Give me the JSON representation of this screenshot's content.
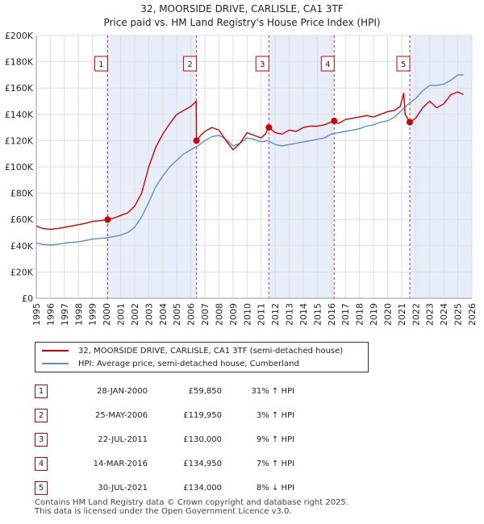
{
  "title_line1": "32, MOORSIDE DRIVE, CARLISLE, CA1 3TF",
  "title_line2": "Price paid vs. HM Land Registry's House Price Index (HPI)",
  "chart_data": {
    "type": "line",
    "title": "32, MOORSIDE DRIVE, CARLISLE, CA1 3TF",
    "subtitle": "Price paid vs. HM Land Registry's House Price Index (HPI)",
    "xlabel": "",
    "ylabel": "",
    "xlim": [
      1995,
      2026
    ],
    "ylim": [
      0,
      200000
    ],
    "x_ticks": [
      1995,
      1996,
      1997,
      1998,
      1999,
      2000,
      2001,
      2002,
      2003,
      2004,
      2005,
      2006,
      2007,
      2008,
      2009,
      2010,
      2011,
      2012,
      2013,
      2014,
      2015,
      2016,
      2017,
      2018,
      2019,
      2020,
      2021,
      2022,
      2023,
      2024,
      2025,
      2026
    ],
    "y_ticks": [
      0,
      20000,
      40000,
      60000,
      80000,
      100000,
      120000,
      140000,
      160000,
      180000,
      200000
    ],
    "y_tick_labels": [
      "£0",
      "£20K",
      "£40K",
      "£60K",
      "£80K",
      "£100K",
      "£120K",
      "£140K",
      "£160K",
      "£180K",
      "£200K"
    ],
    "grid": true,
    "colors": {
      "property": "#cc0000",
      "hpi": "#5b8fc9",
      "shade": "#e8eef9",
      "marker_line": "#cc3333"
    },
    "series": [
      {
        "name": "32, MOORSIDE DRIVE, CARLISLE, CA1 3TF (semi-detached house)",
        "x": [
          1995.0,
          1995.5,
          1996.0,
          1996.5,
          1997.0,
          1997.5,
          1998.0,
          1998.5,
          1999.0,
          1999.5,
          2000.08,
          2000.5,
          2001.0,
          2001.5,
          2002.0,
          2002.5,
          2003.0,
          2003.5,
          2004.0,
          2004.5,
          2005.0,
          2005.5,
          2006.0,
          2006.3,
          2006.38,
          2006.4,
          2006.7,
          2007.0,
          2007.5,
          2008.0,
          2008.5,
          2009.0,
          2009.5,
          2010.0,
          2010.5,
          2011.0,
          2011.3,
          2011.55,
          2012.0,
          2012.5,
          2013.0,
          2013.5,
          2014.0,
          2014.5,
          2015.0,
          2015.5,
          2016.2,
          2016.5,
          2017.0,
          2017.5,
          2018.0,
          2018.5,
          2019.0,
          2019.5,
          2020.0,
          2020.5,
          2020.9,
          2021.0,
          2021.15,
          2021.25,
          2021.58,
          2022.0,
          2022.5,
          2023.0,
          2023.5,
          2024.0,
          2024.5,
          2025.0,
          2025.4
        ],
        "values": [
          55000,
          53000,
          52500,
          53000,
          54000,
          55000,
          56000,
          57000,
          58500,
          59000,
          59850,
          61000,
          63000,
          65000,
          70000,
          80000,
          100000,
          115000,
          125000,
          133000,
          140000,
          143000,
          146000,
          149000,
          150000,
          119950,
          124000,
          127000,
          130000,
          128000,
          120000,
          113000,
          118000,
          126000,
          124000,
          122000,
          125000,
          130000,
          126000,
          125000,
          128000,
          127000,
          130000,
          131000,
          131000,
          132000,
          134950,
          133000,
          136000,
          137000,
          138000,
          139000,
          138000,
          140000,
          142000,
          143000,
          146000,
          150000,
          156000,
          140000,
          134000,
          137000,
          145000,
          150000,
          145000,
          148000,
          155000,
          157000,
          155000
        ]
      },
      {
        "name": "HPI: Average price, semi-detached house, Cumberland",
        "x": [
          1995.0,
          1995.5,
          1996.0,
          1996.5,
          1997.0,
          1997.5,
          1998.0,
          1998.5,
          1999.0,
          1999.5,
          2000.0,
          2000.5,
          2001.0,
          2001.5,
          2002.0,
          2002.5,
          2003.0,
          2003.5,
          2004.0,
          2004.5,
          2005.0,
          2005.5,
          2006.0,
          2006.5,
          2007.0,
          2007.5,
          2008.0,
          2008.5,
          2009.0,
          2009.5,
          2010.0,
          2010.5,
          2011.0,
          2011.5,
          2012.0,
          2012.5,
          2013.0,
          2013.5,
          2014.0,
          2014.5,
          2015.0,
          2015.5,
          2016.0,
          2016.5,
          2017.0,
          2017.5,
          2018.0,
          2018.5,
          2019.0,
          2019.5,
          2020.0,
          2020.5,
          2021.0,
          2021.5,
          2022.0,
          2022.5,
          2023.0,
          2023.5,
          2024.0,
          2024.5,
          2025.0,
          2025.4
        ],
        "values": [
          42000,
          41000,
          40500,
          41000,
          42000,
          42500,
          43000,
          44000,
          45000,
          45500,
          46000,
          47000,
          48000,
          50000,
          54000,
          62000,
          73000,
          85000,
          93000,
          100000,
          105000,
          110000,
          113000,
          116000,
          120000,
          123000,
          124000,
          121000,
          116000,
          118000,
          122000,
          121000,
          119000,
          120000,
          117000,
          116000,
          117000,
          118000,
          119000,
          120000,
          121000,
          122000,
          125000,
          126000,
          127000,
          128000,
          129000,
          131000,
          132000,
          134000,
          135000,
          138000,
          143000,
          148000,
          152000,
          158000,
          162000,
          162000,
          163000,
          166000,
          170000,
          170000
        ]
      }
    ],
    "sales": [
      {
        "num": "1",
        "date": "28-JAN-2000",
        "price": "£59,850",
        "hpi": "31% ↑ HPI",
        "x": 2000.08,
        "value": 59850
      },
      {
        "num": "2",
        "date": "25-MAY-2006",
        "price": "£119,950",
        "hpi": "3% ↑ HPI",
        "x": 2006.4,
        "value": 119950
      },
      {
        "num": "3",
        "date": "22-JUL-2011",
        "price": "£130,000",
        "hpi": "9% ↑ HPI",
        "x": 2011.55,
        "value": 130000
      },
      {
        "num": "4",
        "date": "14-MAR-2016",
        "price": "£134,950",
        "hpi": "7% ↑ HPI",
        "x": 2016.2,
        "value": 134950
      },
      {
        "num": "5",
        "date": "30-JUL-2021",
        "price": "£134,000",
        "hpi": "8% ↓ HPI",
        "x": 2021.58,
        "value": 134000
      }
    ],
    "shaded_ranges": [
      [
        2000.08,
        2006.4
      ],
      [
        2011.55,
        2016.2
      ],
      [
        2021.58,
        2026
      ]
    ]
  },
  "legend": {
    "property_label": "32, MOORSIDE DRIVE, CARLISLE, CA1 3TF (semi-detached house)",
    "hpi_label": "HPI: Average price, semi-detached house, Cumberland"
  },
  "footer": {
    "line1": "Contains HM Land Registry data © Crown copyright and database right 2025.",
    "line2": "This data is licensed under the Open Government Licence v3.0."
  }
}
